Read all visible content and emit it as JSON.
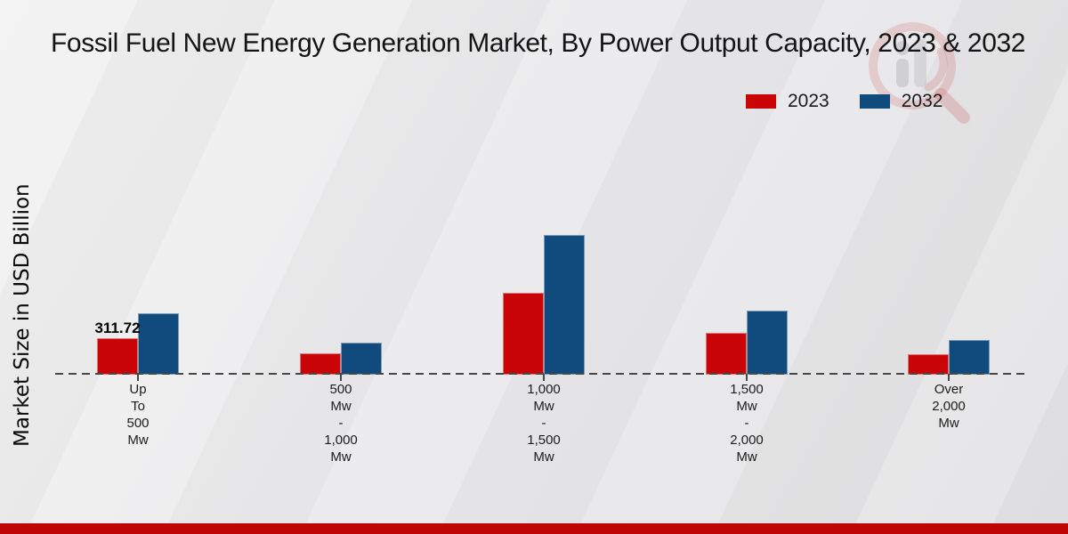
{
  "page": {
    "title": "Fossil Fuel New Energy Generation Market, By Power Output Capacity, 2023 & 2032"
  },
  "icons": {
    "watermark": "magnifier-bar-chart-logo"
  },
  "colors": {
    "series_2023": "#c90508",
    "series_2032": "#114a7d",
    "footer_band": "#c00505",
    "axis_dash": "#474747",
    "background": "#ebebec"
  },
  "chart_data": {
    "type": "bar",
    "title": "Fossil Fuel New Energy Generation Market, By Power Output Capacity, 2023 & 2032",
    "xlabel": "",
    "ylabel": "Market Size in USD Billion",
    "categories": [
      "Up\nTo\n500\nMw",
      "500\nMw\n-\n1,000\nMw",
      "1,000\nMw\n-\n1,500\nMw",
      "1,500\nMw\n-\n2,000\nMw",
      "Over\n2,000\nMw"
    ],
    "series": [
      {
        "name": "2023",
        "color": "#c90508",
        "values": [
          311.72,
          179,
          709,
          358,
          171
        ],
        "data_labels": [
          "311.72",
          null,
          null,
          null,
          null
        ]
      },
      {
        "name": "2032",
        "color": "#114a7d",
        "values": [
          530,
          273,
          1216,
          553,
          296
        ],
        "data_labels": [
          null,
          null,
          null,
          null,
          null
        ]
      }
    ],
    "ylim": [
      0,
      1250
    ],
    "grid": false,
    "y_tick_labels_visible": false,
    "legend_position": "top-right",
    "baseline_style": "dashed"
  }
}
